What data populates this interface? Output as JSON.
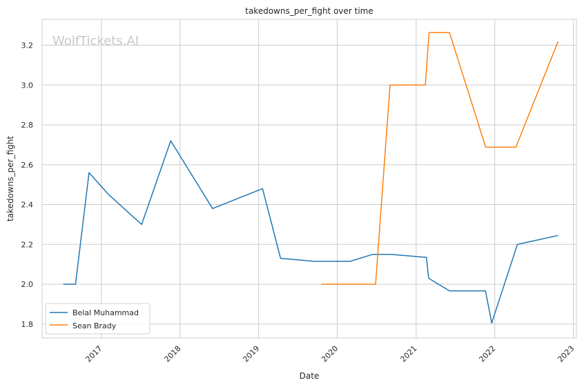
{
  "chart_data": {
    "type": "line",
    "title": "takedowns_per_fight over time",
    "xlabel": "Date",
    "ylabel": "takedowns_per_fight",
    "watermark": "WolfTickets.AI",
    "xlim": [
      "2016-04-01",
      "2023-01-15"
    ],
    "ylim": [
      1.73,
      3.33
    ],
    "x_ticks": [
      "2017-01-01",
      "2018-01-01",
      "2019-01-01",
      "2020-01-01",
      "2021-01-01",
      "2022-01-01",
      "2023-01-01"
    ],
    "x_tick_labels": [
      "2017",
      "2018",
      "2019",
      "2020",
      "2021",
      "2022",
      "2023"
    ],
    "y_ticks": [
      1.8,
      2.0,
      2.2,
      2.4,
      2.6,
      2.8,
      3.0,
      3.2
    ],
    "y_tick_labels": [
      "1.8",
      "2.0",
      "2.2",
      "2.4",
      "2.6",
      "2.8",
      "3.0",
      "3.2"
    ],
    "grid": true,
    "legend_position": "lower-left",
    "series": [
      {
        "name": "Belal Muhammad",
        "color": "#1f77b4",
        "x": [
          "2016-07-08",
          "2016-09-03",
          "2016-11-05",
          "2017-02-04",
          "2017-07-07",
          "2017-11-19",
          "2018-06-01",
          "2019-01-19",
          "2019-04-13",
          "2019-09-14",
          "2020-03-01",
          "2020-06-14",
          "2020-09-06",
          "2021-02-18",
          "2021-02-28",
          "2021-06-05",
          "2021-11-19",
          "2021-12-18",
          "2022-04-16",
          "2022-10-22"
        ],
        "values": [
          2.0,
          2.0,
          2.56,
          2.45,
          2.3,
          2.72,
          2.38,
          2.48,
          2.13,
          2.115,
          2.115,
          2.15,
          2.15,
          2.135,
          2.03,
          1.967,
          1.967,
          1.805,
          2.2,
          2.245
        ]
      },
      {
        "name": "Sean Brady",
        "color": "#ff7f0e",
        "x": [
          "2019-10-18",
          "2020-06-27",
          "2020-09-02",
          "2021-02-13",
          "2021-03-02",
          "2021-06-05",
          "2021-11-20",
          "2022-04-09",
          "2022-10-22"
        ],
        "values": [
          2.0,
          2.0,
          3.0,
          3.0,
          3.263,
          3.263,
          2.688,
          2.688,
          3.22
        ]
      }
    ]
  }
}
